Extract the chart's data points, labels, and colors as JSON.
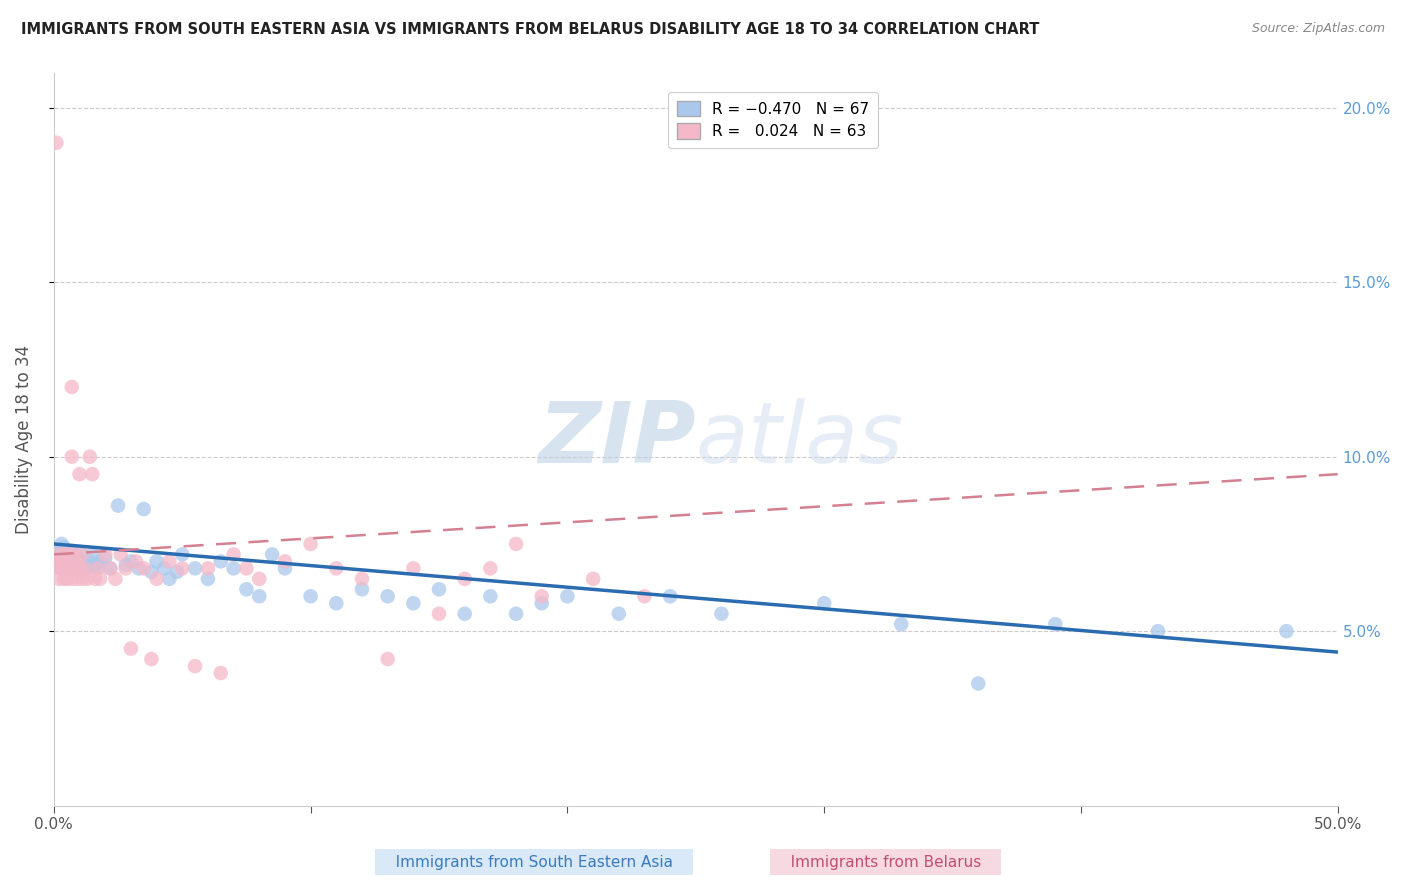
{
  "title": "IMMIGRANTS FROM SOUTH EASTERN ASIA VS IMMIGRANTS FROM BELARUS DISABILITY AGE 18 TO 34 CORRELATION CHART",
  "source": "Source: ZipAtlas.com",
  "ylabel": "Disability Age 18 to 34",
  "xlim": [
    0.0,
    0.5
  ],
  "ylim": [
    0.0,
    0.21
  ],
  "yticks_right": [
    0.05,
    0.1,
    0.15,
    0.2
  ],
  "yticklabels_right": [
    "5.0%",
    "10.0%",
    "15.0%",
    "20.0%"
  ],
  "watermark": "ZIPatlas",
  "blue_color": "#aac8eb",
  "pink_color": "#f4b8c8",
  "blue_line_color": "#2b6cb0",
  "pink_line_color": "#d48090",
  "blue_scatter_x": [
    0.001,
    0.002,
    0.002,
    0.003,
    0.003,
    0.004,
    0.005,
    0.005,
    0.006,
    0.006,
    0.007,
    0.007,
    0.008,
    0.008,
    0.009,
    0.009,
    0.01,
    0.01,
    0.011,
    0.012,
    0.013,
    0.014,
    0.015,
    0.016,
    0.017,
    0.018,
    0.02,
    0.022,
    0.025,
    0.028,
    0.03,
    0.033,
    0.035,
    0.038,
    0.04,
    0.043,
    0.045,
    0.048,
    0.05,
    0.055,
    0.06,
    0.065,
    0.07,
    0.075,
    0.08,
    0.085,
    0.09,
    0.1,
    0.11,
    0.12,
    0.13,
    0.14,
    0.15,
    0.16,
    0.17,
    0.18,
    0.19,
    0.2,
    0.22,
    0.24,
    0.26,
    0.3,
    0.33,
    0.36,
    0.39,
    0.43,
    0.48
  ],
  "blue_scatter_y": [
    0.073,
    0.072,
    0.07,
    0.075,
    0.068,
    0.074,
    0.07,
    0.072,
    0.071,
    0.069,
    0.073,
    0.068,
    0.07,
    0.072,
    0.069,
    0.071,
    0.07,
    0.068,
    0.072,
    0.069,
    0.068,
    0.07,
    0.072,
    0.069,
    0.068,
    0.07,
    0.071,
    0.068,
    0.086,
    0.069,
    0.07,
    0.068,
    0.085,
    0.067,
    0.07,
    0.068,
    0.065,
    0.067,
    0.072,
    0.068,
    0.065,
    0.07,
    0.068,
    0.062,
    0.06,
    0.072,
    0.068,
    0.06,
    0.058,
    0.062,
    0.06,
    0.058,
    0.062,
    0.055,
    0.06,
    0.055,
    0.058,
    0.06,
    0.055,
    0.06,
    0.055,
    0.058,
    0.052,
    0.035,
    0.052,
    0.05,
    0.05
  ],
  "pink_scatter_x": [
    0.001,
    0.001,
    0.002,
    0.002,
    0.002,
    0.003,
    0.003,
    0.004,
    0.004,
    0.005,
    0.005,
    0.005,
    0.006,
    0.006,
    0.007,
    0.007,
    0.007,
    0.008,
    0.008,
    0.009,
    0.009,
    0.01,
    0.01,
    0.011,
    0.011,
    0.012,
    0.013,
    0.014,
    0.015,
    0.016,
    0.017,
    0.018,
    0.02,
    0.022,
    0.024,
    0.026,
    0.028,
    0.03,
    0.032,
    0.035,
    0.038,
    0.04,
    0.045,
    0.05,
    0.055,
    0.06,
    0.065,
    0.07,
    0.075,
    0.08,
    0.09,
    0.1,
    0.11,
    0.12,
    0.13,
    0.14,
    0.15,
    0.16,
    0.17,
    0.18,
    0.19,
    0.21,
    0.23
  ],
  "pink_scatter_y": [
    0.19,
    0.07,
    0.068,
    0.072,
    0.065,
    0.07,
    0.068,
    0.072,
    0.065,
    0.07,
    0.068,
    0.065,
    0.072,
    0.068,
    0.12,
    0.1,
    0.065,
    0.072,
    0.068,
    0.07,
    0.065,
    0.095,
    0.068,
    0.072,
    0.065,
    0.068,
    0.065,
    0.1,
    0.095,
    0.065,
    0.068,
    0.065,
    0.072,
    0.068,
    0.065,
    0.072,
    0.068,
    0.045,
    0.07,
    0.068,
    0.042,
    0.065,
    0.07,
    0.068,
    0.04,
    0.068,
    0.038,
    0.072,
    0.068,
    0.065,
    0.07,
    0.075,
    0.068,
    0.065,
    0.042,
    0.068,
    0.055,
    0.065,
    0.068,
    0.075,
    0.06,
    0.065,
    0.06
  ]
}
